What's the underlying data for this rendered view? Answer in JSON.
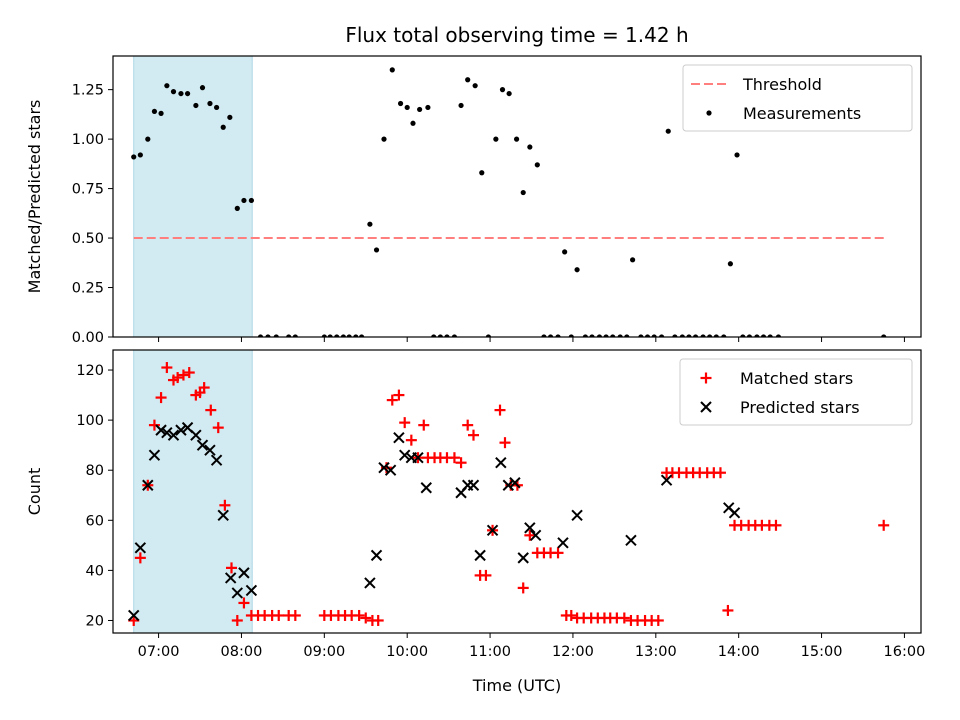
{
  "chart_data": {
    "type": "scatter",
    "title": "Flux total observing time = 1.42 h",
    "x_unit": "hours (UTC)",
    "xlabel": "Time (UTC)",
    "x_ticks": [
      "07:00",
      "08:00",
      "09:00",
      "10:00",
      "11:00",
      "12:00",
      "13:00",
      "14:00",
      "15:00",
      "16:00"
    ],
    "xlim": [
      6.45,
      16.2
    ],
    "shaded_interval": [
      6.7,
      8.13
    ],
    "shaded_color": "#add8e6",
    "panels": [
      {
        "ylabel": "Matched/Predicted stars",
        "ylim": [
          0,
          1.42
        ],
        "y_ticks": [
          "0.00",
          "0.25",
          "0.50",
          "0.75",
          "1.00",
          "1.25"
        ],
        "y_tick_values": [
          0,
          0.25,
          0.5,
          0.75,
          1.0,
          1.25
        ],
        "threshold": {
          "name": "Threshold",
          "y": 0.5,
          "x_range": [
            6.7,
            15.77
          ],
          "color": "#ff7f7f"
        },
        "legend": {
          "placement": "top-right",
          "entries": [
            "Threshold",
            "Measurements"
          ]
        },
        "series": [
          {
            "name": "Measurements",
            "marker": "dot",
            "color": "#000000",
            "points": [
              [
                6.7,
                0.91
              ],
              [
                6.78,
                0.92
              ],
              [
                6.87,
                1.0
              ],
              [
                6.95,
                1.14
              ],
              [
                7.03,
                1.13
              ],
              [
                7.1,
                1.27
              ],
              [
                7.18,
                1.24
              ],
              [
                7.27,
                1.23
              ],
              [
                7.35,
                1.23
              ],
              [
                7.45,
                1.17
              ],
              [
                7.53,
                1.26
              ],
              [
                7.62,
                1.18
              ],
              [
                7.7,
                1.16
              ],
              [
                7.78,
                1.06
              ],
              [
                7.86,
                1.11
              ],
              [
                7.95,
                0.65
              ],
              [
                8.03,
                0.69
              ],
              [
                8.12,
                0.69
              ],
              [
                8.23,
                0
              ],
              [
                8.32,
                0
              ],
              [
                8.42,
                0
              ],
              [
                8.57,
                0
              ],
              [
                8.65,
                0
              ],
              [
                9.0,
                0
              ],
              [
                9.07,
                0
              ],
              [
                9.15,
                0
              ],
              [
                9.23,
                0
              ],
              [
                9.3,
                0
              ],
              [
                9.38,
                0
              ],
              [
                9.45,
                0
              ],
              [
                9.55,
                0.57
              ],
              [
                9.63,
                0.44
              ],
              [
                9.72,
                1.0
              ],
              [
                9.82,
                1.35
              ],
              [
                9.92,
                1.18
              ],
              [
                10.0,
                1.16
              ],
              [
                10.07,
                1.08
              ],
              [
                10.15,
                1.15
              ],
              [
                10.25,
                1.16
              ],
              [
                10.32,
                0
              ],
              [
                10.4,
                0
              ],
              [
                10.48,
                0
              ],
              [
                10.57,
                0
              ],
              [
                10.65,
                1.17
              ],
              [
                10.73,
                1.3
              ],
              [
                10.82,
                1.27
              ],
              [
                10.9,
                0.83
              ],
              [
                10.98,
                0
              ],
              [
                11.07,
                1.0
              ],
              [
                11.15,
                1.25
              ],
              [
                11.23,
                1.23
              ],
              [
                11.32,
                1.0
              ],
              [
                11.4,
                0.73
              ],
              [
                11.48,
                0.96
              ],
              [
                11.57,
                0.87
              ],
              [
                11.65,
                0
              ],
              [
                11.73,
                0
              ],
              [
                11.82,
                0
              ],
              [
                11.9,
                0.43
              ],
              [
                11.98,
                0
              ],
              [
                12.05,
                0.34
              ],
              [
                12.15,
                0
              ],
              [
                12.23,
                0
              ],
              [
                12.32,
                0
              ],
              [
                12.4,
                0
              ],
              [
                12.48,
                0
              ],
              [
                12.57,
                0
              ],
              [
                12.65,
                0
              ],
              [
                12.72,
                0.39
              ],
              [
                12.82,
                0
              ],
              [
                12.9,
                0
              ],
              [
                12.98,
                0
              ],
              [
                13.07,
                0
              ],
              [
                13.15,
                1.04
              ],
              [
                13.23,
                0
              ],
              [
                13.32,
                0
              ],
              [
                13.4,
                0
              ],
              [
                13.48,
                0
              ],
              [
                13.57,
                0
              ],
              [
                13.65,
                0
              ],
              [
                13.73,
                0
              ],
              [
                13.82,
                0
              ],
              [
                13.9,
                0.37
              ],
              [
                13.98,
                0.92
              ],
              [
                14.05,
                0
              ],
              [
                14.13,
                0
              ],
              [
                14.22,
                0
              ],
              [
                14.3,
                0
              ],
              [
                14.38,
                0
              ],
              [
                14.48,
                0
              ],
              [
                15.75,
                0
              ]
            ]
          }
        ]
      },
      {
        "ylabel": "Count",
        "ylim": [
          15,
          128
        ],
        "y_ticks": [
          "20",
          "40",
          "60",
          "80",
          "100",
          "120"
        ],
        "y_tick_values": [
          20,
          40,
          60,
          80,
          100,
          120
        ],
        "legend": {
          "placement": "top-right",
          "entries": [
            "Matched stars",
            "Predicted stars"
          ]
        },
        "series": [
          {
            "name": "Matched stars",
            "marker": "plus",
            "color": "#ff0000",
            "points": [
              [
                6.7,
                20
              ],
              [
                6.78,
                45
              ],
              [
                6.87,
                74
              ],
              [
                6.95,
                98
              ],
              [
                7.03,
                109
              ],
              [
                7.1,
                121
              ],
              [
                7.18,
                116
              ],
              [
                7.23,
                117
              ],
              [
                7.3,
                118
              ],
              [
                7.37,
                119
              ],
              [
                7.45,
                110
              ],
              [
                7.5,
                111
              ],
              [
                7.55,
                113
              ],
              [
                7.63,
                104
              ],
              [
                7.72,
                97
              ],
              [
                7.8,
                66
              ],
              [
                7.88,
                41
              ],
              [
                7.95,
                20
              ],
              [
                8.03,
                27
              ],
              [
                8.12,
                22
              ],
              [
                8.2,
                22
              ],
              [
                8.28,
                22
              ],
              [
                8.37,
                22
              ],
              [
                8.45,
                22
              ],
              [
                8.57,
                22
              ],
              [
                8.65,
                22
              ],
              [
                9.0,
                22
              ],
              [
                9.08,
                22
              ],
              [
                9.17,
                22
              ],
              [
                9.25,
                22
              ],
              [
                9.33,
                22
              ],
              [
                9.42,
                22
              ],
              [
                9.5,
                21
              ],
              [
                9.58,
                20
              ],
              [
                9.65,
                20
              ],
              [
                9.75,
                81
              ],
              [
                9.82,
                108
              ],
              [
                9.9,
                110
              ],
              [
                9.97,
                99
              ],
              [
                10.05,
                92
              ],
              [
                10.13,
                85
              ],
              [
                10.2,
                98
              ],
              [
                10.25,
                85
              ],
              [
                10.33,
                85
              ],
              [
                10.4,
                85
              ],
              [
                10.48,
                85
              ],
              [
                10.57,
                85
              ],
              [
                10.65,
                83
              ],
              [
                10.73,
                98
              ],
              [
                10.8,
                94
              ],
              [
                10.88,
                38
              ],
              [
                10.95,
                38
              ],
              [
                11.03,
                56
              ],
              [
                11.12,
                104
              ],
              [
                11.18,
                91
              ],
              [
                11.25,
                74
              ],
              [
                11.33,
                74
              ],
              [
                11.4,
                33
              ],
              [
                11.48,
                54
              ],
              [
                11.57,
                47
              ],
              [
                11.65,
                47
              ],
              [
                11.73,
                47
              ],
              [
                11.82,
                47
              ],
              [
                11.92,
                22
              ],
              [
                11.98,
                22
              ],
              [
                12.05,
                21
              ],
              [
                12.13,
                21
              ],
              [
                12.22,
                21
              ],
              [
                12.3,
                21
              ],
              [
                12.38,
                21
              ],
              [
                12.45,
                21
              ],
              [
                12.53,
                21
              ],
              [
                12.62,
                21
              ],
              [
                12.7,
                20
              ],
              [
                12.78,
                20
              ],
              [
                12.87,
                20
              ],
              [
                12.95,
                20
              ],
              [
                13.03,
                20
              ],
              [
                13.13,
                79
              ],
              [
                13.2,
                79
              ],
              [
                13.28,
                79
              ],
              [
                13.37,
                79
              ],
              [
                13.45,
                79
              ],
              [
                13.53,
                79
              ],
              [
                13.62,
                79
              ],
              [
                13.7,
                79
              ],
              [
                13.78,
                79
              ],
              [
                13.87,
                24
              ],
              [
                13.95,
                58
              ],
              [
                14.03,
                58
              ],
              [
                14.12,
                58
              ],
              [
                14.2,
                58
              ],
              [
                14.28,
                58
              ],
              [
                14.37,
                58
              ],
              [
                14.45,
                58
              ],
              [
                15.75,
                58
              ]
            ]
          },
          {
            "name": "Predicted stars",
            "marker": "x",
            "color": "#000000",
            "points": [
              [
                6.7,
                22
              ],
              [
                6.78,
                49
              ],
              [
                6.87,
                74
              ],
              [
                6.95,
                86
              ],
              [
                7.03,
                96
              ],
              [
                7.1,
                95
              ],
              [
                7.18,
                94
              ],
              [
                7.27,
                96
              ],
              [
                7.35,
                97
              ],
              [
                7.45,
                94
              ],
              [
                7.53,
                90
              ],
              [
                7.62,
                88
              ],
              [
                7.7,
                84
              ],
              [
                7.78,
                62
              ],
              [
                7.87,
                37
              ],
              [
                7.95,
                31
              ],
              [
                8.03,
                39
              ],
              [
                8.12,
                32
              ],
              [
                9.55,
                35
              ],
              [
                9.63,
                46
              ],
              [
                9.72,
                81
              ],
              [
                9.8,
                80
              ],
              [
                9.9,
                93
              ],
              [
                9.97,
                86
              ],
              [
                10.05,
                85
              ],
              [
                10.13,
                85
              ],
              [
                10.23,
                73
              ],
              [
                10.65,
                71
              ],
              [
                10.73,
                74
              ],
              [
                10.8,
                74
              ],
              [
                10.88,
                46
              ],
              [
                11.03,
                56
              ],
              [
                11.13,
                83
              ],
              [
                11.22,
                74
              ],
              [
                11.3,
                75
              ],
              [
                11.4,
                45
              ],
              [
                11.48,
                57
              ],
              [
                11.55,
                54
              ],
              [
                11.88,
                51
              ],
              [
                12.05,
                62
              ],
              [
                12.7,
                52
              ],
              [
                13.13,
                76
              ],
              [
                13.88,
                65
              ],
              [
                13.95,
                63
              ]
            ]
          }
        ]
      }
    ]
  }
}
